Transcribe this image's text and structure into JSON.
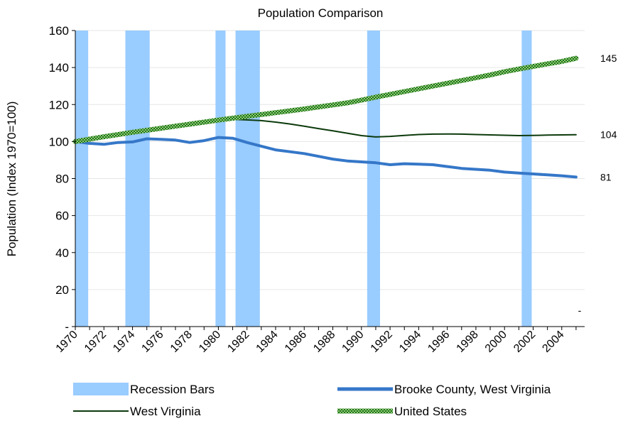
{
  "chart_data": {
    "type": "line",
    "title": "Population Comparison",
    "ylabel": "Population (Index 1970=100)",
    "xlabel": "",
    "ylim": [
      0,
      160
    ],
    "yticks": [
      {
        "value": 0,
        "label": "-"
      },
      {
        "value": 20,
        "label": "20"
      },
      {
        "value": 40,
        "label": "40"
      },
      {
        "value": 60,
        "label": "60"
      },
      {
        "value": 80,
        "label": "80"
      },
      {
        "value": 100,
        "label": "100"
      },
      {
        "value": 120,
        "label": "120"
      },
      {
        "value": 140,
        "label": "140"
      },
      {
        "value": 160,
        "label": "160"
      }
    ],
    "xlim": [
      1970,
      2005.6
    ],
    "xtick_labels": [
      "1970",
      "1972",
      "1974",
      "1976",
      "1978",
      "1980",
      "1982",
      "1984",
      "1986",
      "1988",
      "1990",
      "1992",
      "1994",
      "1996",
      "1998",
      "2000",
      "2002",
      "2004"
    ],
    "grid": true,
    "legend_position": "bottom",
    "recessions": [
      {
        "start": 1970.0,
        "end": 1970.9
      },
      {
        "start": 1973.5,
        "end": 1975.2
      },
      {
        "start": 1979.8,
        "end": 1980.5
      },
      {
        "start": 1981.2,
        "end": 1982.9
      },
      {
        "start": 1990.4,
        "end": 1991.3
      },
      {
        "start": 2001.2,
        "end": 2001.9
      }
    ],
    "x": [
      1970,
      1971,
      1972,
      1973,
      1974,
      1975,
      1976,
      1977,
      1978,
      1979,
      1980,
      1981,
      1982,
      1983,
      1984,
      1985,
      1986,
      1987,
      1988,
      1989,
      1990,
      1991,
      1992,
      1993,
      1994,
      1995,
      1996,
      1997,
      1998,
      1999,
      2000,
      2001,
      2002,
      2003,
      2004,
      2005
    ],
    "series": [
      {
        "name": "Brooke County, West Virginia",
        "color": "#3577c8",
        "end_label": "81",
        "values": [
          100,
          99,
          98.5,
          99.5,
          99.8,
          101.5,
          101.2,
          100.8,
          99.5,
          100.5,
          102.2,
          101.8,
          99.5,
          97.5,
          95.5,
          94.5,
          93.5,
          92,
          90.5,
          89.5,
          89,
          88.5,
          87.5,
          88,
          87.8,
          87.5,
          86.5,
          85.5,
          85,
          84.5,
          83.5,
          83,
          82.5,
          82,
          81.5,
          80.8
        ]
      },
      {
        "name": "West Virginia",
        "color": "#0c3a0c",
        "end_label": "104",
        "values": [
          100,
          101.8,
          103.2,
          104.2,
          105.5,
          106.5,
          107.3,
          108.2,
          109,
          110,
          111,
          112,
          111.7,
          111.3,
          110.5,
          109.5,
          108.3,
          107,
          105.8,
          104.5,
          103.2,
          102.5,
          102.8,
          103.3,
          103.8,
          104,
          104.1,
          104,
          103.8,
          103.6,
          103.4,
          103.2,
          103.3,
          103.5,
          103.6,
          103.7
        ]
      },
      {
        "name": "United States",
        "color": "#2e8b2e",
        "end_label": "145",
        "values": [
          100,
          101.3,
          102.6,
          103.8,
          105,
          106.1,
          107.2,
          108.3,
          109.4,
          110.5,
          111.6,
          112.6,
          113.6,
          114.6,
          115.6,
          116.6,
          117.6,
          118.7,
          119.8,
          120.9,
          122.4,
          124,
          125.5,
          127,
          128.5,
          130,
          131.5,
          133,
          134.5,
          136,
          137.7,
          139.2,
          140.6,
          142,
          143.3,
          145
        ]
      }
    ],
    "legend": [
      {
        "label": "Recession Bars",
        "kind": "bar",
        "color": "#99ccff"
      },
      {
        "label": "Brooke County, West Virginia",
        "kind": "line-thick",
        "color": "#3577c8"
      },
      {
        "label": "West Virginia",
        "kind": "line-thin",
        "color": "#0c3a0c"
      },
      {
        "label": "United States",
        "kind": "line-pattern",
        "color": "#2e8b2e"
      }
    ],
    "right_corner_mark": "-"
  }
}
